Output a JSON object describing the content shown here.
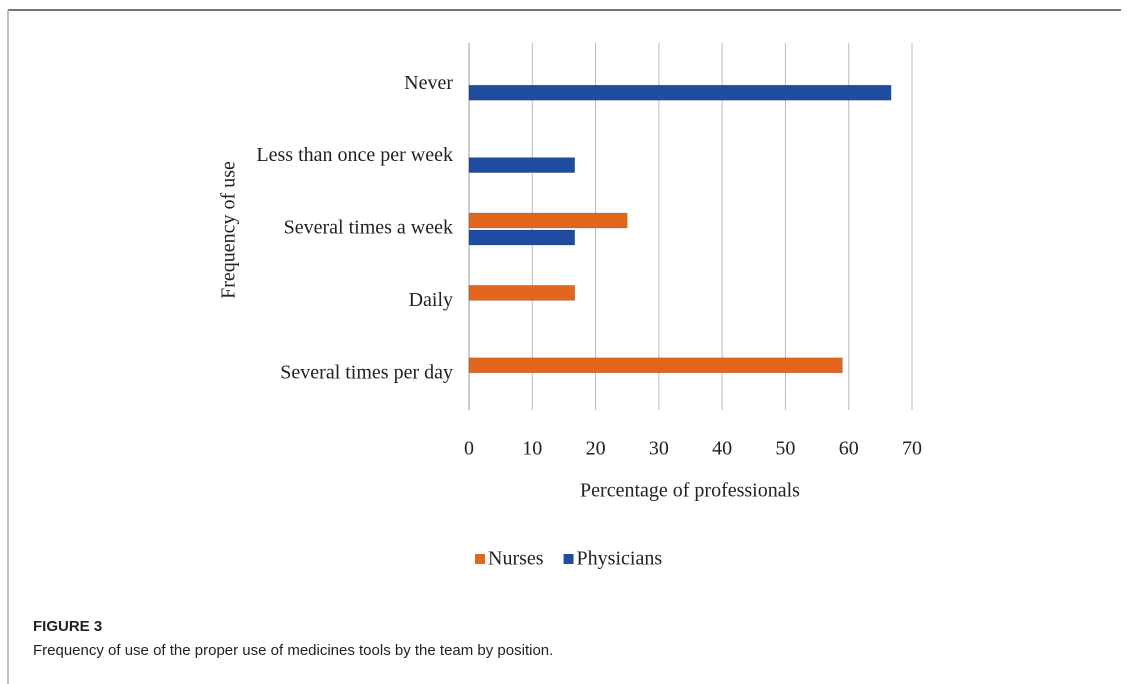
{
  "chart_data": {
    "type": "bar",
    "orientation": "horizontal",
    "x_label": "Percentage of professionals",
    "y_label": "Frequency of use",
    "categories": [
      "Never",
      "Less than once per week",
      "Several times a week",
      "Daily",
      "Several times per day"
    ],
    "series": [
      {
        "name": "Nurses",
        "color": "#e2661d",
        "values": [
          null,
          null,
          25,
          16.7,
          59
        ]
      },
      {
        "name": "Physicians",
        "color": "#1f4c9e",
        "values": [
          66.7,
          16.7,
          16.7,
          null,
          null
        ]
      }
    ],
    "xlim": [
      0,
      70
    ],
    "xticks": [
      0,
      10,
      20,
      30,
      40,
      50,
      60,
      70
    ],
    "grid": true,
    "legend": "bottom"
  },
  "caption": {
    "label": "FIGURE 3",
    "text": "Frequency of use of the proper use of medicines tools by the team by position."
  }
}
